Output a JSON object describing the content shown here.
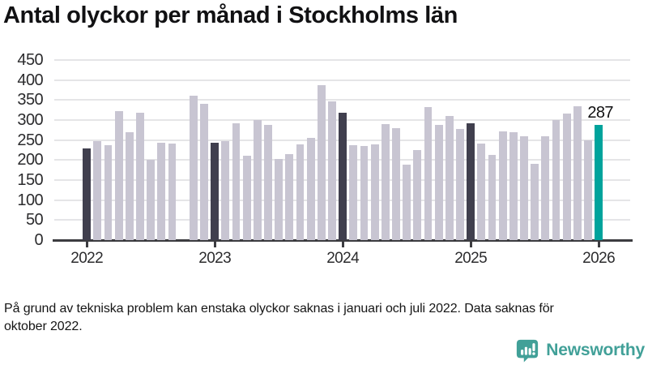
{
  "title": "Antal olyckor per månad i Stockholms län",
  "annotation_label": "287",
  "footnote": "På grund av tekniska problem kan enstaka olyckor saknas i januari och juli 2022. Data saknas för oktober 2022.",
  "logo": {
    "text": "Newsworthy"
  },
  "colors": {
    "bar": "#c8c5d2",
    "january_bar": "#403f4e",
    "latest_bar": "#00a39c",
    "logo": "#41a098",
    "axis": "#3c3c40",
    "gridline": "#e5e5e7",
    "text": "#111113"
  },
  "chart_data": {
    "type": "bar",
    "title": "Antal olyckor per månad i Stockholms län",
    "xlabel": "",
    "ylabel": "",
    "ylim": [
      0,
      450
    ],
    "yticks": [
      0,
      50,
      100,
      150,
      200,
      250,
      300,
      350,
      400,
      450
    ],
    "xtick_labels": [
      "2022",
      "2023",
      "2024",
      "2025",
      "2026"
    ],
    "grid": "horizontal",
    "legend": "none",
    "highlight_notes": "January bars dark navy; latest month teal with value label; October 2022 missing",
    "annotation": {
      "month": "2026-01",
      "value": 287
    },
    "missing_months": [
      "2022-10"
    ],
    "years": [
      {
        "year": "2022",
        "values": [
          230,
          248,
          237,
          322,
          270,
          318,
          200,
          243,
          241,
          null,
          361,
          340
        ]
      },
      {
        "year": "2023",
        "values": [
          244,
          248,
          291,
          210,
          301,
          287,
          202,
          215,
          240,
          255,
          388,
          346
        ]
      },
      {
        "year": "2024",
        "values": [
          318,
          237,
          235,
          240,
          289,
          279,
          188,
          226,
          332,
          287,
          311,
          277
        ]
      },
      {
        "year": "2025",
        "values": [
          292,
          242,
          212,
          272,
          270,
          259,
          191,
          259,
          300,
          317,
          334,
          250
        ]
      },
      {
        "year": "2026",
        "values": [
          287
        ]
      }
    ]
  }
}
